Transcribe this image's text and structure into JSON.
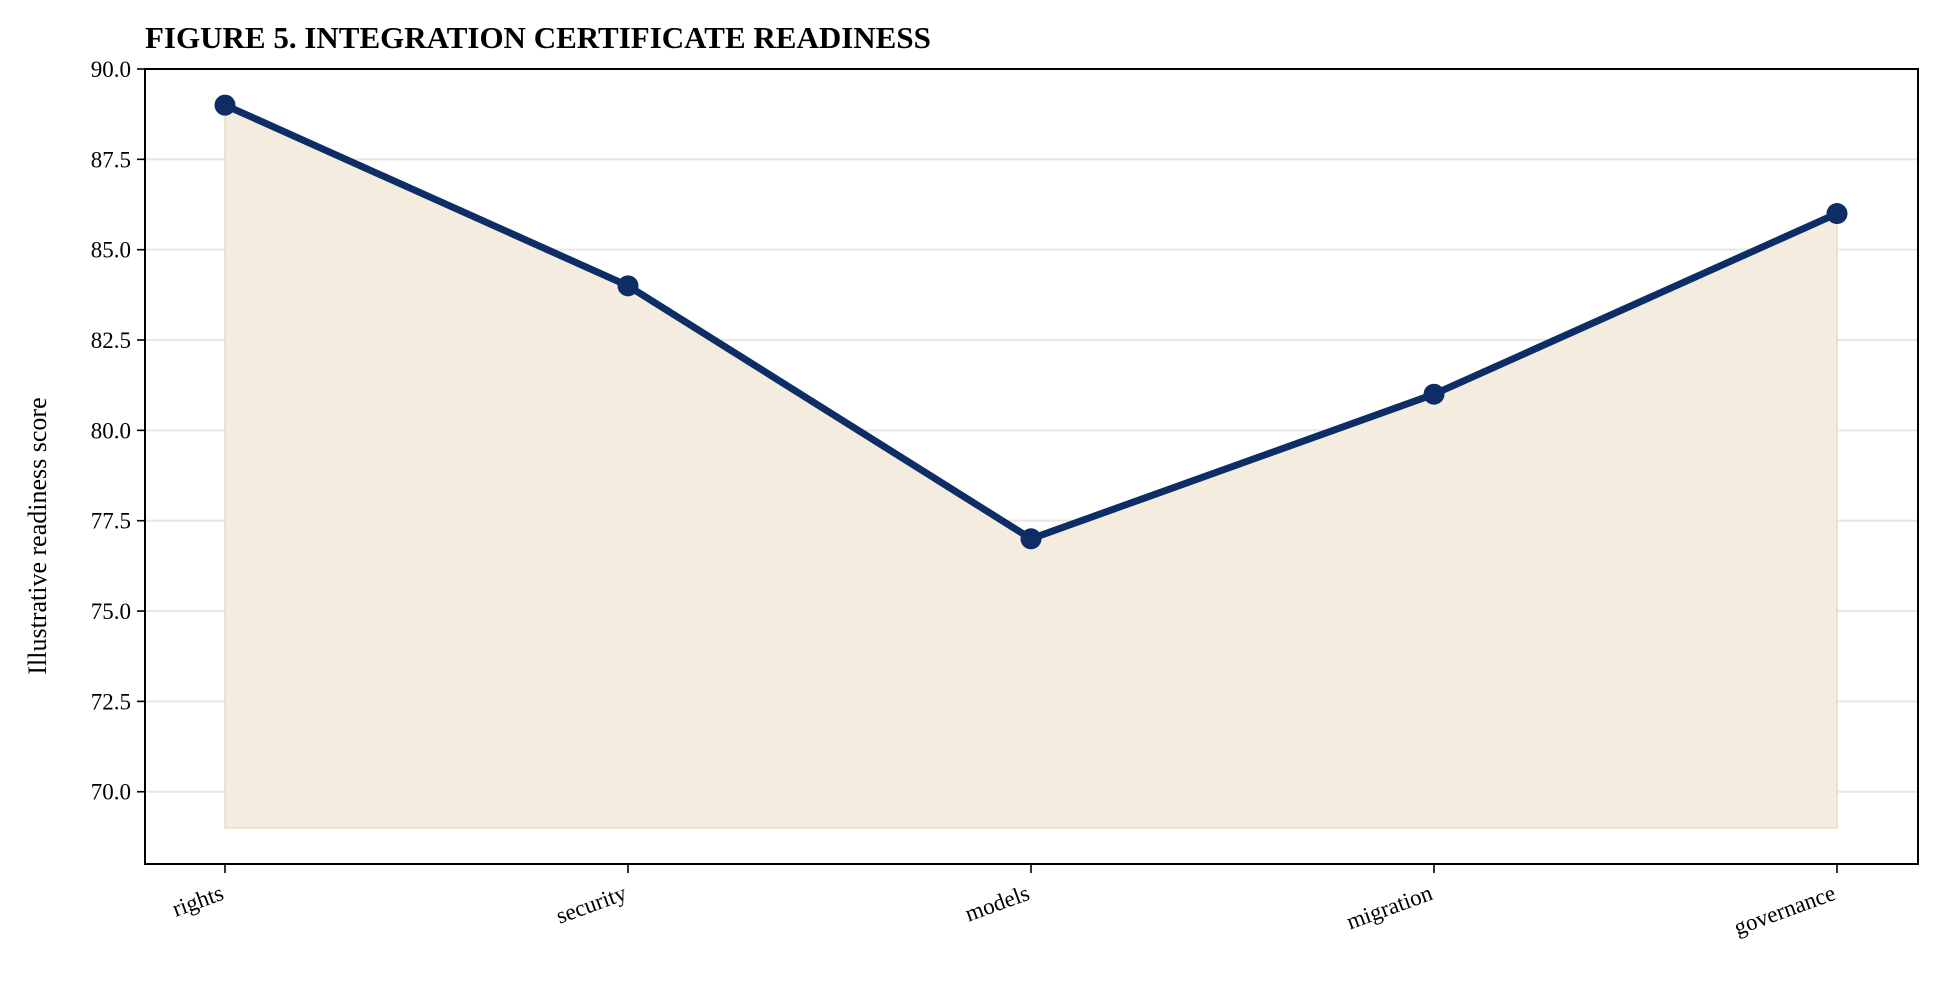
{
  "chart_data": {
    "type": "line",
    "title": "FIGURE 5. INTEGRATION CERTIFICATE READINESS",
    "xlabel": "",
    "ylabel": "Illustrative readiness score",
    "categories": [
      "rights",
      "security",
      "models",
      "migration",
      "governance"
    ],
    "series": [
      {
        "values": [
          89,
          84,
          77,
          81,
          86
        ]
      }
    ],
    "fill_baseline": 69,
    "ylim": [
      68,
      90
    ],
    "yticks": [
      "70.0",
      "72.5",
      "75.0",
      "77.5",
      "80.0",
      "82.5",
      "85.0",
      "87.5",
      "90.0"
    ],
    "grid": "horizontal",
    "legend": "none",
    "colors": {
      "line": "#0d2d66",
      "fill": "#f3ecdf",
      "fill_edge": "#eadcc0",
      "grid": "#e6e6e6"
    }
  }
}
